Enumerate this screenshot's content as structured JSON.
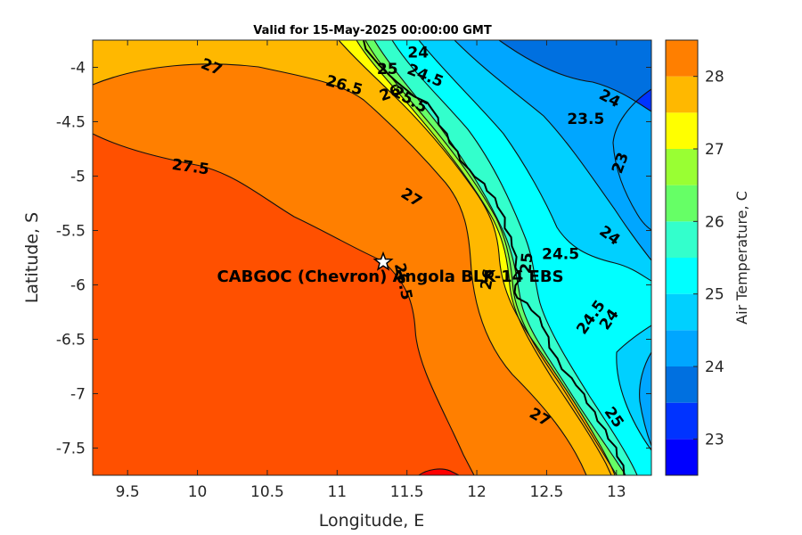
{
  "title": "Valid for 15-May-2025 00:00:00 GMT",
  "xlabel": "Longitude, E",
  "ylabel": "Latitude, S",
  "colorbar_label": "Air Temperature, C",
  "colors": {
    "c22_5": "#0000ff",
    "c23": "#0033ff",
    "c23_5": "#0070e0",
    "c24": "#00a6ff",
    "c24_5": "#00d0ff",
    "c25": "#00ffff",
    "c25_5": "#33ffcc",
    "c26": "#66ff66",
    "c26_5": "#99ff33",
    "c27": "#ffff00",
    "c27_5": "#ffb800",
    "c28": "#ff7f00",
    "c28_5": "#ff5000",
    "c29": "#ff0000"
  },
  "chart_data": {
    "type": "contour",
    "variable": "Air Temperature, C",
    "xlim": [
      9.25,
      13.25
    ],
    "ylim": [
      -7.75,
      -3.75
    ],
    "x_ticks": [
      {
        "value": 9.5,
        "label": "9.5"
      },
      {
        "value": 10,
        "label": "10"
      },
      {
        "value": 10.5,
        "label": "10.5"
      },
      {
        "value": 11,
        "label": "11"
      },
      {
        "value": 11.5,
        "label": "11.5"
      },
      {
        "value": 12,
        "label": "12"
      },
      {
        "value": 12.5,
        "label": "12.5"
      },
      {
        "value": 13,
        "label": "13"
      }
    ],
    "y_ticks": [
      {
        "value": -4,
        "label": "-4"
      },
      {
        "value": -4.5,
        "label": "-4.5"
      },
      {
        "value": -5,
        "label": "-5"
      },
      {
        "value": -5.5,
        "label": "-5.5"
      },
      {
        "value": -6,
        "label": "-6"
      },
      {
        "value": -6.5,
        "label": "-6.5"
      },
      {
        "value": -7,
        "label": "-7"
      },
      {
        "value": -7.5,
        "label": "-7.5"
      }
    ],
    "colorbar": {
      "range": [
        22.5,
        28.5
      ],
      "ticks": [
        {
          "value": 23,
          "label": "23"
        },
        {
          "value": 24,
          "label": "24"
        },
        {
          "value": 25,
          "label": "25"
        },
        {
          "value": 26,
          "label": "26"
        },
        {
          "value": 27,
          "label": "27"
        },
        {
          "value": 28,
          "label": "28"
        }
      ],
      "bands": [
        {
          "from": 22.5,
          "to": 23,
          "color": "#0000ff"
        },
        {
          "from": 23,
          "to": 23.5,
          "color": "#0033ff"
        },
        {
          "from": 23.5,
          "to": 24,
          "color": "#0070e0"
        },
        {
          "from": 24,
          "to": 24.5,
          "color": "#00a6ff"
        },
        {
          "from": 24.5,
          "to": 25,
          "color": "#00d0ff"
        },
        {
          "from": 25,
          "to": 25.5,
          "color": "#00ffff"
        },
        {
          "from": 25.5,
          "to": 26,
          "color": "#33ffcc"
        },
        {
          "from": 26,
          "to": 26.5,
          "color": "#66ff66"
        },
        {
          "from": 26.5,
          "to": 27,
          "color": "#99ff33"
        },
        {
          "from": 27,
          "to": 27.5,
          "color": "#ffff00"
        },
        {
          "from": 27.5,
          "to": 28,
          "color": "#ffb800"
        },
        {
          "from": 28,
          "to": 28.5,
          "color": "#ff7f00"
        },
        {
          "from": 28.5,
          "to": 29,
          "color": "#ff5000"
        }
      ]
    },
    "contour_labels": [
      {
        "text": "27",
        "lon": 10.1,
        "lat": -4.0,
        "rot": 22
      },
      {
        "text": "27.5",
        "lon": 9.95,
        "lat": -4.92,
        "rot": 8
      },
      {
        "text": "26.5",
        "lon": 11.05,
        "lat": -4.17,
        "rot": 16
      },
      {
        "text": "26",
        "lon": 11.38,
        "lat": -4.24,
        "rot": -20
      },
      {
        "text": "25",
        "lon": 11.36,
        "lat": -4.02,
        "rot": 0
      },
      {
        "text": "24",
        "lon": 11.58,
        "lat": -3.87,
        "rot": 0
      },
      {
        "text": "24.5",
        "lon": 11.63,
        "lat": -4.08,
        "rot": 22
      },
      {
        "text": "25.5",
        "lon": 11.52,
        "lat": -4.3,
        "rot": 30
      },
      {
        "text": "27",
        "lon": 11.53,
        "lat": -5.2,
        "rot": 32
      },
      {
        "text": "24",
        "lon": 12.95,
        "lat": -4.29,
        "rot": 28
      },
      {
        "text": "23.5",
        "lon": 12.78,
        "lat": -4.48,
        "rot": 0
      },
      {
        "text": "23",
        "lon": 13.03,
        "lat": -4.88,
        "rot": -70
      },
      {
        "text": "24",
        "lon": 12.95,
        "lat": -5.55,
        "rot": 36
      },
      {
        "text": "24.5",
        "lon": 12.6,
        "lat": -5.72,
        "rot": 0
      },
      {
        "text": "26",
        "lon": 12.08,
        "lat": -5.95,
        "rot": -80
      },
      {
        "text": "25",
        "lon": 12.36,
        "lat": -5.8,
        "rot": -85
      },
      {
        "text": "24.5",
        "lon": 12.82,
        "lat": -6.3,
        "rot": -55
      },
      {
        "text": "24",
        "lon": 12.95,
        "lat": -6.32,
        "rot": -55
      },
      {
        "text": "25",
        "lon": 12.98,
        "lat": -7.22,
        "rot": 55
      },
      {
        "text": "27",
        "lon": 12.45,
        "lat": -7.22,
        "rot": 30
      },
      {
        "text": "26.5",
        "lon": 11.47,
        "lat": -5.97,
        "rot": 78
      }
    ],
    "site": {
      "label": "CABGOC (Chevron)  Angola BLK-14  EBS",
      "lon": 11.33,
      "lat": -5.79
    }
  }
}
